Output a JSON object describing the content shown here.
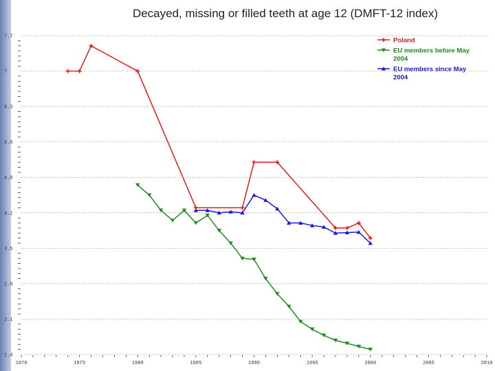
{
  "title": "Decayed, missing or filled teeth at age 12 (DMFT-12 index)",
  "colors": {
    "Poland": "#e41a1a",
    "EU_before": "#1f8a1f",
    "EU_since": "#1a1ad0",
    "grid": "#666666",
    "side_bar": "#7b88bb"
  },
  "chart_data": {
    "type": "line",
    "title": "Decayed, missing or filled teeth at age 12 (DMFT-12 index)",
    "xlabel": "",
    "ylabel": "",
    "xlim": [
      1970,
      2010
    ],
    "ylim": [
      1.4,
      7.7
    ],
    "x_ticks": [
      "1970",
      "1975",
      "1980",
      "1985",
      "1990",
      "1995",
      "2000",
      "2005",
      "2010"
    ],
    "y_ticks": [
      "1.4",
      "2.1",
      "2.8",
      "3.5",
      "4.2",
      "4.9",
      "5.6",
      "6.3",
      "7",
      "7.7"
    ],
    "grid": "dotted horizontal",
    "legend_position": "top-right",
    "series": [
      {
        "name": "Poland",
        "color": "#e41a1a",
        "marker": "plus",
        "x": [
          1974,
          1975,
          1976,
          1980,
          1985,
          1989,
          1990,
          1992,
          1997,
          1998,
          1999,
          2000
        ],
        "y": [
          7.0,
          7.0,
          7.5,
          7.0,
          4.3,
          4.3,
          5.2,
          5.2,
          3.9,
          3.9,
          4.0,
          3.7
        ]
      },
      {
        "name": "EU members before May 2004",
        "color": "#1f8a1f",
        "marker": "triangle-down",
        "x": [
          1980,
          1981,
          1982,
          1983,
          1984,
          1985,
          1986,
          1987,
          1988,
          1989,
          1990,
          1991,
          1992,
          1993,
          1994,
          1995,
          1996,
          1997,
          1998,
          1999,
          2000
        ],
        "y": [
          4.75,
          4.55,
          4.25,
          4.05,
          4.25,
          4.0,
          4.15,
          3.85,
          3.6,
          3.3,
          3.28,
          2.9,
          2.6,
          2.35,
          2.05,
          1.9,
          1.78,
          1.68,
          1.62,
          1.56,
          1.5
        ]
      },
      {
        "name": "EU members since May 2004",
        "color": "#1a1ad0",
        "marker": "triangle-up",
        "x": [
          1985,
          1986,
          1987,
          1988,
          1989,
          1990,
          1991,
          1992,
          1993,
          1994,
          1995,
          1996,
          1997,
          1998,
          1999,
          2000
        ],
        "y": [
          4.25,
          4.25,
          4.2,
          4.22,
          4.2,
          4.55,
          4.45,
          4.28,
          4.0,
          4.0,
          3.95,
          3.92,
          3.8,
          3.81,
          3.82,
          3.6
        ]
      }
    ],
    "legend": [
      {
        "lines": [
          "Poland"
        ],
        "color": "#e41a1a",
        "marker": "plus"
      },
      {
        "lines": [
          "EU members before May",
          "2004"
        ],
        "color": "#1f8a1f",
        "marker": "triangle-down"
      },
      {
        "lines": [
          "EU members since May",
          "2004"
        ],
        "color": "#1a1ad0",
        "marker": "triangle-up"
      }
    ]
  }
}
